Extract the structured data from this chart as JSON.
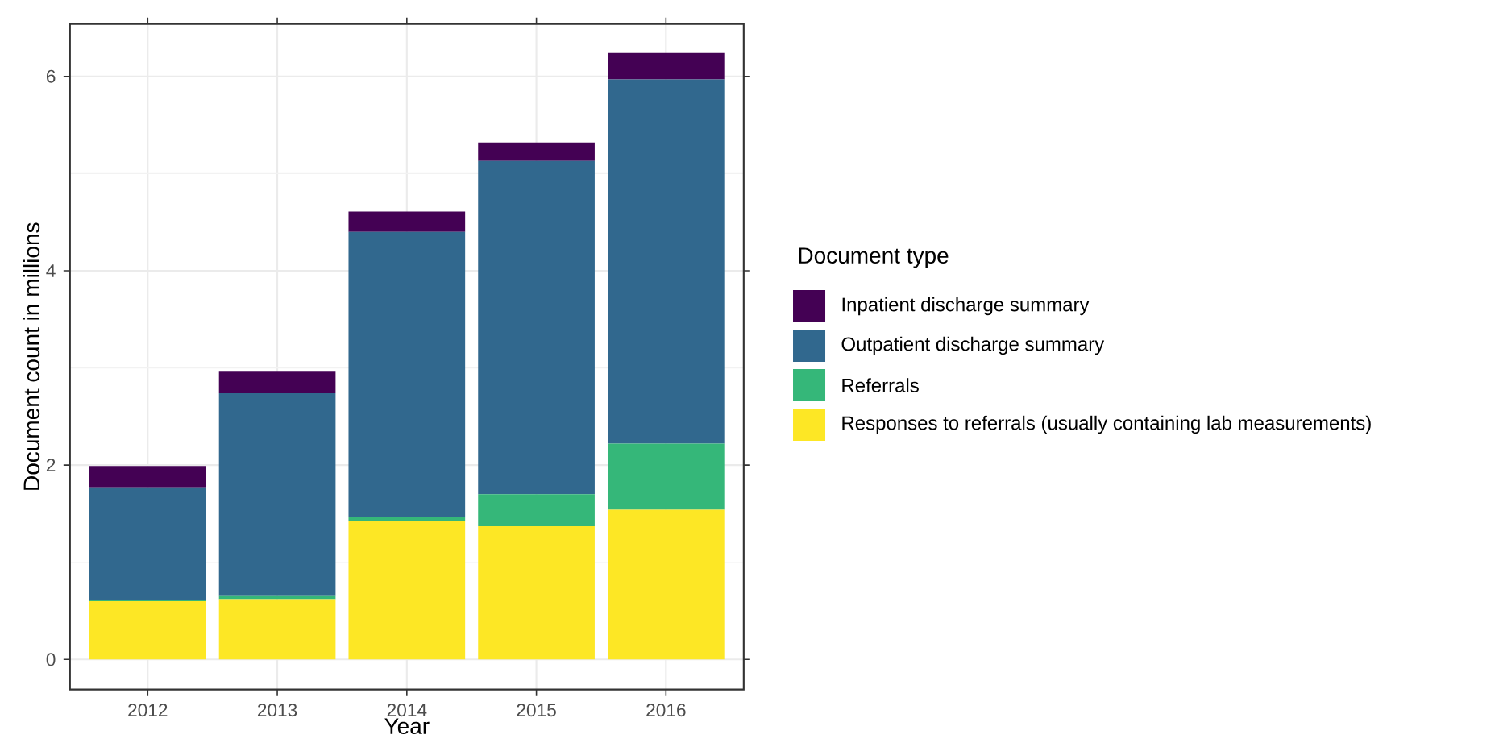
{
  "chart_data": {
    "type": "bar",
    "stacked": true,
    "xlabel": "Year",
    "ylabel": "Document count in millions",
    "legend_title": "Document type",
    "categories": [
      "2012",
      "2013",
      "2014",
      "2015",
      "2016"
    ],
    "series": [
      {
        "name": "Responses to referrals (usually containing lab measurements)",
        "color": "#fde725",
        "values": [
          0.6,
          0.62,
          1.42,
          1.37,
          1.54
        ]
      },
      {
        "name": "Referrals",
        "color": "#35b779",
        "values": [
          0.01,
          0.04,
          0.05,
          0.33,
          0.68
        ]
      },
      {
        "name": "Outpatient discharge summary",
        "color": "#31688e",
        "values": [
          1.16,
          2.08,
          2.93,
          3.43,
          3.75
        ]
      },
      {
        "name": "Inpatient discharge summary",
        "color": "#440154",
        "values": [
          0.22,
          0.22,
          0.21,
          0.19,
          0.27
        ]
      }
    ],
    "ylim": [
      -0.31,
      6.54
    ],
    "yticks": [
      0,
      2,
      4,
      6
    ],
    "grid": true,
    "legend": "right"
  }
}
